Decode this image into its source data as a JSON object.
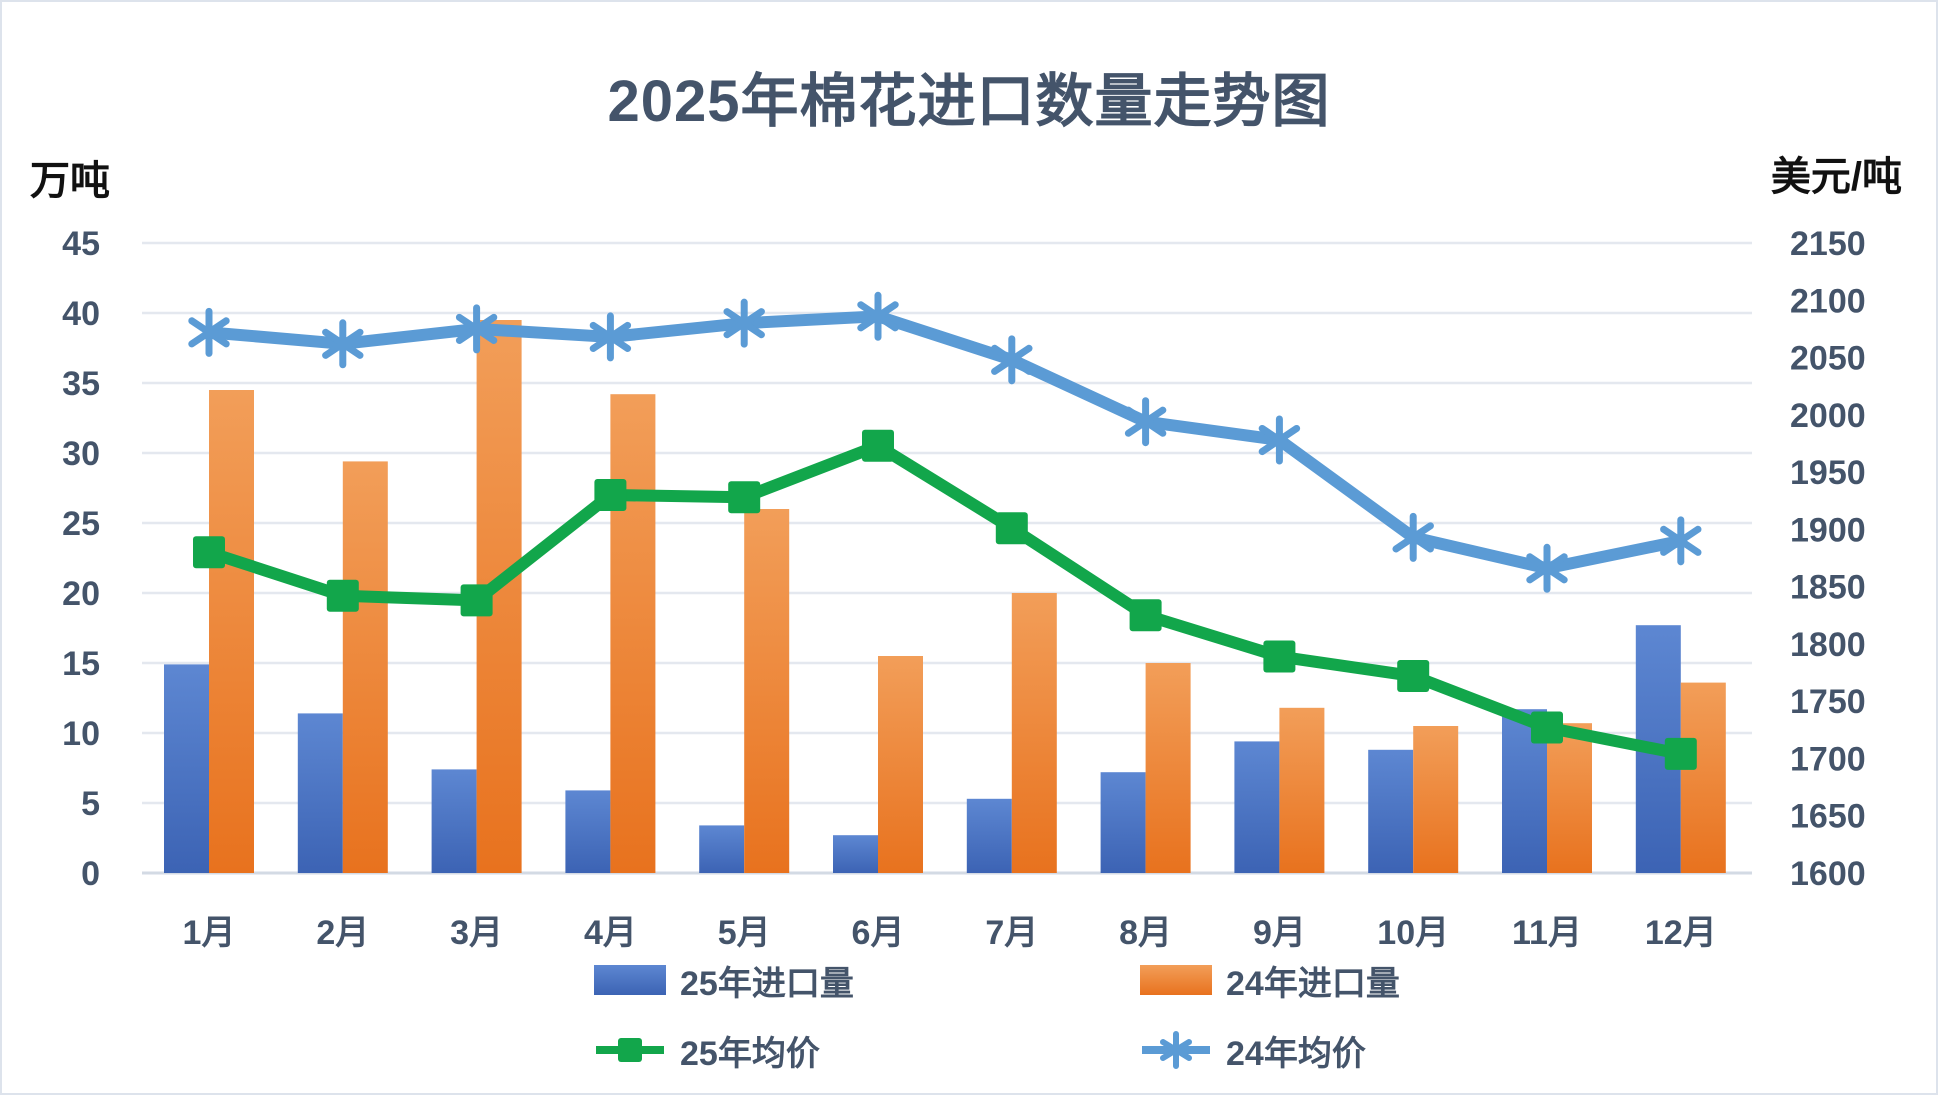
{
  "chart_data": {
    "type": "combo",
    "title": "2025年棉花进口数量走势图",
    "legend_position": "bottom",
    "grid": true,
    "categories": [
      "1月",
      "2月",
      "3月",
      "4月",
      "5月",
      "6月",
      "7月",
      "8月",
      "9月",
      "10月",
      "11月",
      "12月"
    ],
    "left_axis": {
      "label": "万吨",
      "min": 0,
      "max": 45,
      "step": 5
    },
    "right_axis": {
      "label": "美元/吨",
      "min": 1600,
      "max": 2150,
      "step": 50
    },
    "series": [
      {
        "name": "25年进口量",
        "type": "bar",
        "axis": "left",
        "color_top": "#5D87D2",
        "color_bottom": "#3C63B4",
        "values": [
          14.9,
          11.4,
          7.4,
          5.9,
          3.4,
          2.7,
          5.3,
          7.2,
          9.4,
          8.8,
          11.7,
          17.7
        ]
      },
      {
        "name": "24年进口量",
        "type": "bar",
        "axis": "left",
        "color_top": "#F29E59",
        "color_bottom": "#E8721E",
        "values": [
          34.5,
          29.4,
          39.5,
          34.2,
          26.0,
          15.5,
          20.0,
          15.0,
          11.8,
          10.5,
          10.7,
          13.6
        ]
      },
      {
        "name": "25年均价",
        "type": "line",
        "marker": "square",
        "axis": "right",
        "color": "#12A64B",
        "values": [
          1880,
          1842,
          1838,
          1930,
          1928,
          1973,
          1901,
          1825,
          1789,
          1772,
          1727,
          1704
        ]
      },
      {
        "name": "24年均价",
        "type": "line",
        "marker": "asterisk",
        "axis": "right",
        "color": "#5B9BD5",
        "values": [
          2072,
          2062,
          2075,
          2068,
          2080,
          2086,
          2048,
          1994,
          1978,
          1893,
          1866,
          1890
        ]
      }
    ]
  }
}
